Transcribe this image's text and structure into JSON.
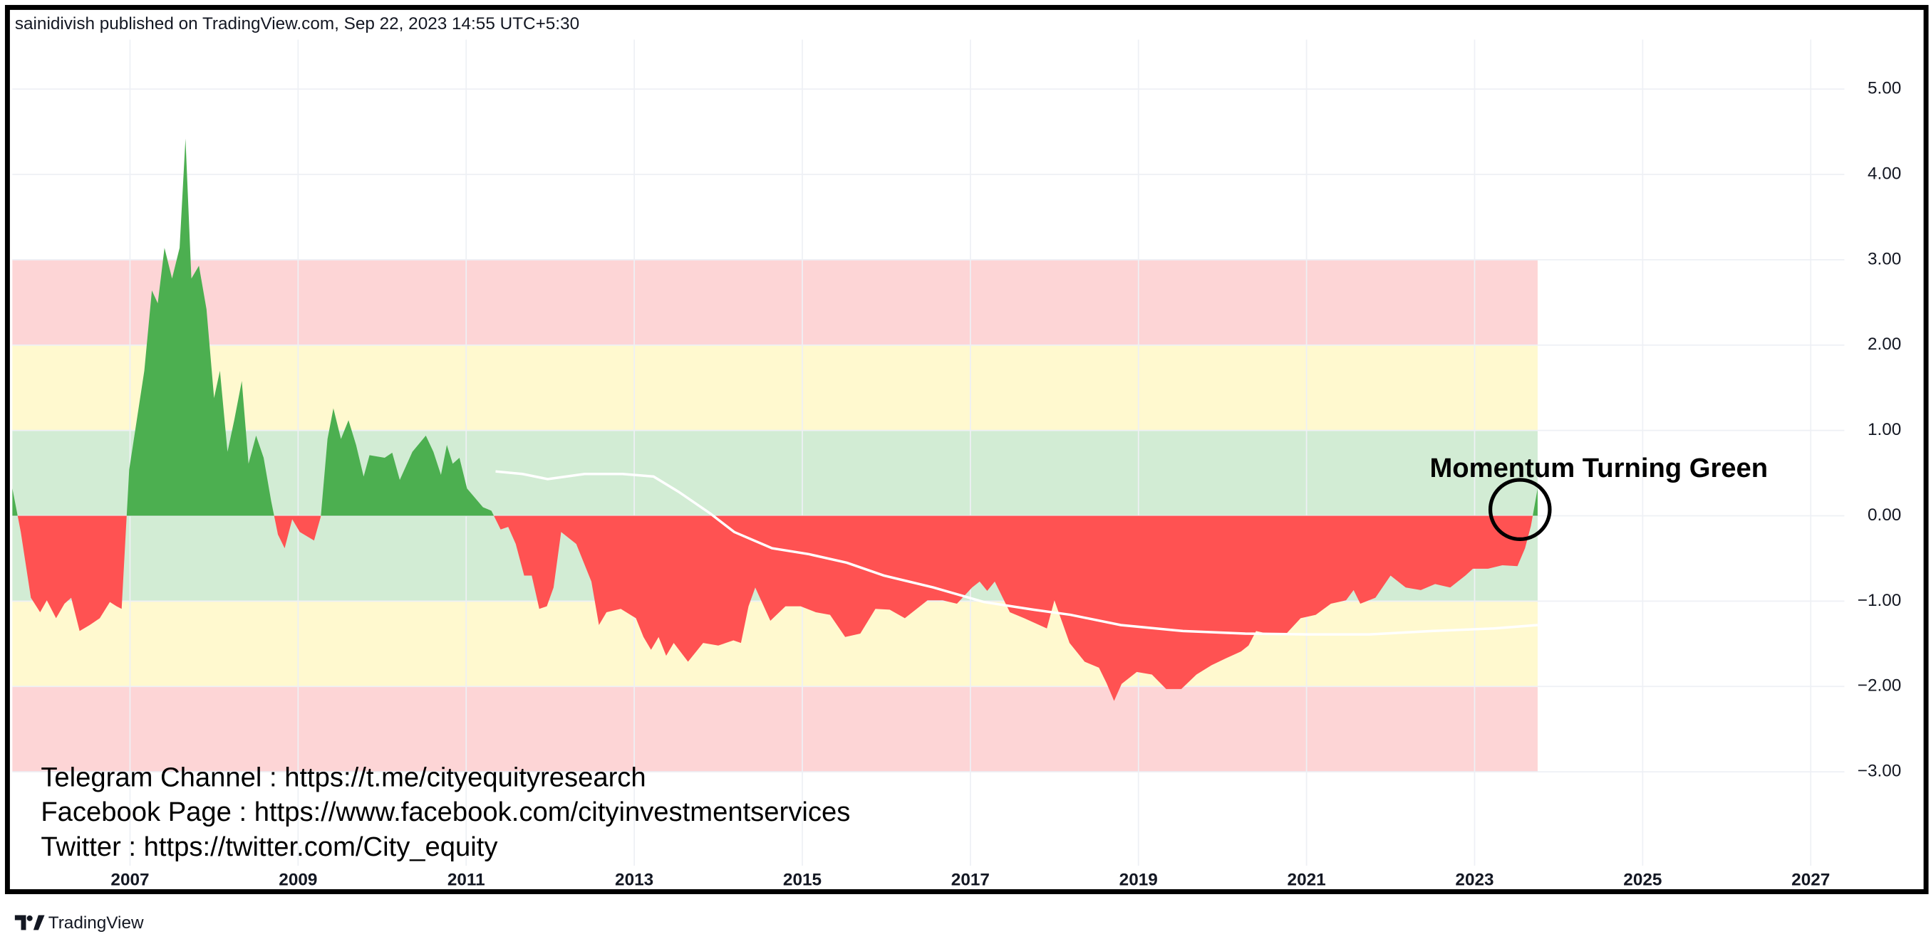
{
  "header": "sainidivish published on TradingView.com, Sep 22, 2023 14:55 UTC+5:30",
  "footer": "TradingView",
  "chart_data": {
    "type": "area",
    "annotation": "Momentum Turning Green",
    "notes": [
      "Telegram Channel : https://t.me/cityequityresearch",
      "Facebook Page : https://www.facebook.com/cityinvestmentservices",
      "Twitter : https://twitter.com/City_equity"
    ],
    "xlim": [
      2005.6,
      2027.4
    ],
    "xticks": [
      2007,
      2009,
      2011,
      2013,
      2015,
      2017,
      2019,
      2021,
      2023,
      2025,
      2027
    ],
    "ylim": [
      -4.1,
      5.58
    ],
    "yticks": [
      {
        "value": 5,
        "label": "5.00"
      },
      {
        "value": 4,
        "label": "4.00"
      },
      {
        "value": 3,
        "label": "3.00"
      },
      {
        "value": 2,
        "label": "2.00"
      },
      {
        "value": 1,
        "label": "1.00"
      },
      {
        "value": 0,
        "label": "0.00"
      },
      {
        "value": -1,
        "label": "−1.00"
      },
      {
        "value": -2,
        "label": "−2.00"
      },
      {
        "value": -3,
        "label": "−3.00"
      }
    ],
    "grid": true,
    "band_xlim": [
      2005.6,
      2023.75
    ],
    "bands": [
      {
        "from": 2,
        "to": 3,
        "color": "#fdd5d6"
      },
      {
        "from": 1,
        "to": 2,
        "color": "#fff9cf"
      },
      {
        "from": -1,
        "to": 1,
        "color": "#d2ecd4"
      },
      {
        "from": -2,
        "to": -1,
        "color": "#fff9cf"
      },
      {
        "from": -3,
        "to": -2,
        "color": "#fdd5d6"
      }
    ],
    "series": [
      {
        "type": "area",
        "colors": [
          "#4caf50",
          "#ff5252"
        ],
        "x": [
          2005.6,
          2005.7,
          2005.82,
          2005.93,
          2006.01,
          2006.12,
          2006.22,
          2006.3,
          2006.4,
          2006.52,
          2006.64,
          2006.76,
          2006.84,
          2006.9,
          2006.99,
          2007.08,
          2007.17,
          2007.26,
          2007.33,
          2007.41,
          2007.5,
          2007.59,
          2007.66,
          2007.73,
          2007.82,
          2007.91,
          2008.0,
          2008.07,
          2008.16,
          2008.24,
          2008.33,
          2008.41,
          2008.5,
          2008.59,
          2008.68,
          2008.76,
          2008.84,
          2008.93,
          2009.02,
          2009.19,
          2009.27,
          2009.35,
          2009.42,
          2009.51,
          2009.6,
          2009.69,
          2009.78,
          2009.85,
          2010.03,
          2010.12,
          2010.21,
          2010.36,
          2010.52,
          2010.61,
          2010.7,
          2010.77,
          2010.84,
          2010.92,
          2011.01,
          2011.2,
          2011.3,
          2011.41,
          2011.5,
          2011.59,
          2011.69,
          2011.78,
          2011.87,
          2011.96,
          2012.04,
          2012.13,
          2012.31,
          2012.4,
          2012.49,
          2012.58,
          2012.67,
          2012.84,
          2013.02,
          2013.11,
          2013.2,
          2013.29,
          2013.38,
          2013.47,
          2013.64,
          2013.82,
          2014.0,
          2014.18,
          2014.27,
          2014.36,
          2014.44,
          2014.62,
          2014.8,
          2014.98,
          2015.16,
          2015.33,
          2015.51,
          2015.69,
          2015.87,
          2016.04,
          2016.22,
          2016.49,
          2016.67,
          2016.84,
          2017.02,
          2017.11,
          2017.2,
          2017.29,
          2017.47,
          2017.64,
          2017.91,
          2018.0,
          2018.18,
          2018.36,
          2018.53,
          2018.62,
          2018.71,
          2018.8,
          2018.98,
          2019.16,
          2019.33,
          2019.51,
          2019.69,
          2019.87,
          2020.04,
          2020.22,
          2020.31,
          2020.4,
          2020.58,
          2020.76,
          2020.93,
          2021.11,
          2021.29,
          2021.47,
          2021.56,
          2021.64,
          2021.82,
          2022.0,
          2022.18,
          2022.36,
          2022.53,
          2022.71,
          2022.89,
          2022.98,
          2023.16,
          2023.33,
          2023.51,
          2023.6,
          2023.67,
          2023.75
        ],
        "values": [
          0.32,
          -0.19,
          -0.96,
          -1.13,
          -0.99,
          -1.2,
          -1.03,
          -0.96,
          -1.35,
          -1.28,
          -1.2,
          -1.01,
          -1.06,
          -1.09,
          0.54,
          1.12,
          1.7,
          2.64,
          2.49,
          3.14,
          2.78,
          3.14,
          4.42,
          2.78,
          2.93,
          2.42,
          1.38,
          1.7,
          0.75,
          1.12,
          1.58,
          0.61,
          0.94,
          0.68,
          0.17,
          -0.22,
          -0.38,
          -0.04,
          -0.19,
          -0.29,
          -0.01,
          0.9,
          1.26,
          0.9,
          1.12,
          0.83,
          0.46,
          0.71,
          0.68,
          0.74,
          0.42,
          0.75,
          0.94,
          0.75,
          0.48,
          0.83,
          0.61,
          0.68,
          0.32,
          0.1,
          0.06,
          -0.16,
          -0.13,
          -0.33,
          -0.7,
          -0.7,
          -1.09,
          -1.06,
          -0.84,
          -0.19,
          -0.33,
          -0.55,
          -0.77,
          -1.28,
          -1.13,
          -1.09,
          -1.2,
          -1.42,
          -1.57,
          -1.42,
          -1.64,
          -1.49,
          -1.71,
          -1.49,
          -1.52,
          -1.46,
          -1.49,
          -1.06,
          -0.84,
          -1.23,
          -1.06,
          -1.06,
          -1.13,
          -1.16,
          -1.42,
          -1.38,
          -1.09,
          -1.1,
          -1.2,
          -0.99,
          -0.99,
          -1.03,
          -0.84,
          -0.77,
          -0.88,
          -0.77,
          -1.13,
          -1.2,
          -1.32,
          -0.99,
          -1.49,
          -1.71,
          -1.78,
          -1.96,
          -2.17,
          -1.97,
          -1.83,
          -1.86,
          -2.03,
          -2.03,
          -1.86,
          -1.75,
          -1.67,
          -1.59,
          -1.52,
          -1.35,
          -1.39,
          -1.38,
          -1.2,
          -1.16,
          -1.03,
          -0.99,
          -0.87,
          -1.03,
          -0.96,
          -0.7,
          -0.84,
          -0.87,
          -0.8,
          -0.84,
          -0.7,
          -0.62,
          -0.62,
          -0.58,
          -0.59,
          -0.38,
          -0.12,
          0.32
        ]
      },
      {
        "type": "line",
        "color": "#ffffff",
        "x": [
          2011.35,
          2011.67,
          2011.97,
          2012.41,
          2012.86,
          2013.23,
          2013.53,
          2013.9,
          2014.19,
          2014.64,
          2015.08,
          2015.53,
          2015.97,
          2016.56,
          2017.16,
          2017.75,
          2018.19,
          2018.79,
          2019.53,
          2020.27,
          2021.01,
          2021.75,
          2022.49,
          2023.23,
          2023.75
        ],
        "values": [
          0.52,
          0.49,
          0.43,
          0.49,
          0.49,
          0.46,
          0.28,
          0.03,
          -0.19,
          -0.38,
          -0.45,
          -0.55,
          -0.7,
          -0.84,
          -1.01,
          -1.1,
          -1.16,
          -1.28,
          -1.35,
          -1.38,
          -1.39,
          -1.39,
          -1.35,
          -1.32,
          -1.28
        ]
      }
    ]
  }
}
